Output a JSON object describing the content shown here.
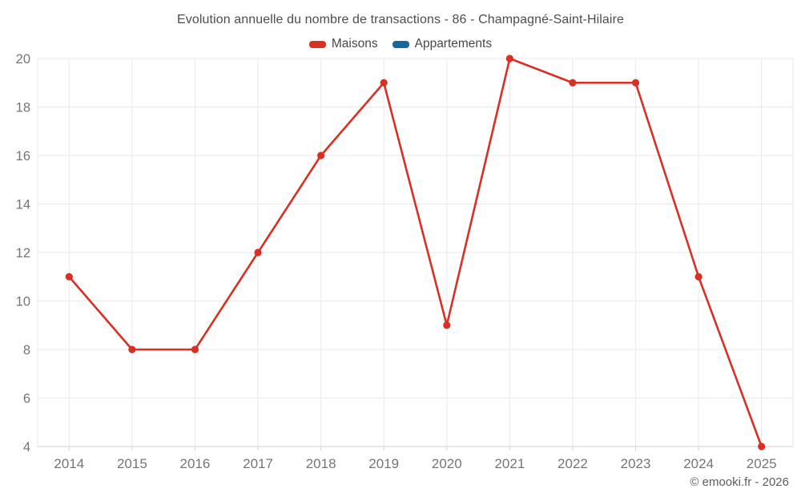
{
  "page": {
    "footer_credit": "© emooki.fr - 2026"
  },
  "chart_data": {
    "type": "line",
    "title": "Evolution annuelle du nombre de transactions - 86 - Champagné-Saint-Hilaire",
    "categories": [
      "2014",
      "2015",
      "2016",
      "2017",
      "2018",
      "2019",
      "2020",
      "2021",
      "2022",
      "2023",
      "2024",
      "2025"
    ],
    "series": [
      {
        "name": "Maisons",
        "color": "#d93025",
        "values": [
          11,
          8,
          8,
          12,
          16,
          19,
          9,
          20,
          19,
          19,
          11,
          4
        ]
      },
      {
        "name": "Appartements",
        "color": "#17699b",
        "values": []
      }
    ],
    "xlabel": "",
    "ylabel": "",
    "ylim": [
      4,
      20
    ],
    "ytick_step": 2,
    "yticks": [
      4,
      6,
      8,
      10,
      12,
      14,
      16,
      18,
      20
    ],
    "grid": true,
    "legend_position": "top",
    "marker": "circle",
    "colors": {
      "grid_line": "#e9e9e9",
      "axis_line": "#d2d2d2",
      "tick_mark": "#d2d2d2",
      "tick_label": "#757575",
      "title_text": "#4d4d4d"
    }
  }
}
